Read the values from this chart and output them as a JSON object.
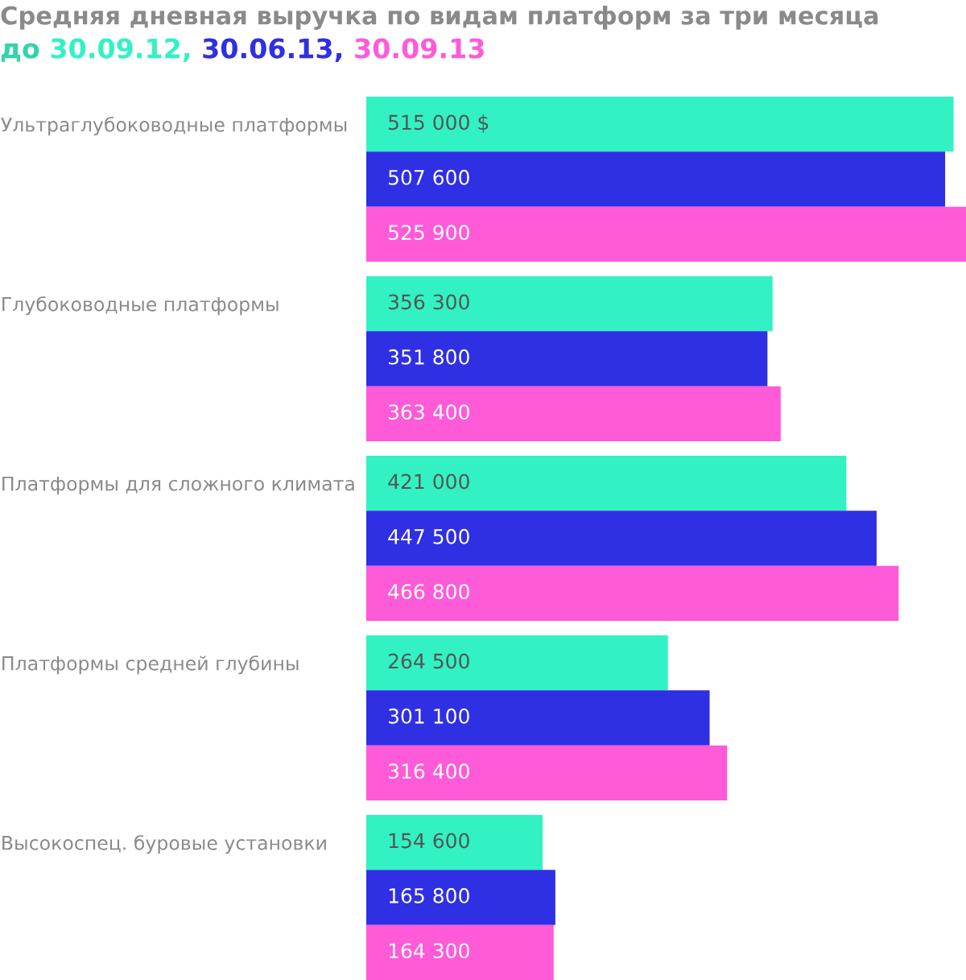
{
  "chart_data": {
    "type": "bar",
    "orientation": "horizontal",
    "title": "Средняя дневная выручка по видам платформ за три месяца",
    "subtitle": "до",
    "categories": [
      "Ультраглубоководные платформы",
      "Глубоководные платформы",
      "Платформы для сложного климата",
      "Платформы средней глубины",
      "Высокоспец. буровые установки"
    ],
    "series": [
      {
        "name": "30.09.12",
        "color": "#32f2c4",
        "values": [
          515000,
          356300,
          421000,
          264500,
          154600
        ],
        "value_labels": [
          "515 000 $",
          "356 300",
          "421 000",
          "264 500",
          "154 600"
        ]
      },
      {
        "name": "30.06.13",
        "color": "#2f2fe4",
        "values": [
          507600,
          351800,
          447500,
          301100,
          165800
        ],
        "value_labels": [
          "507 600",
          "351 800",
          "447 500",
          "301 100",
          "165 800"
        ]
      },
      {
        "name": "30.09.13",
        "color": "#ff5ad8",
        "values": [
          525900,
          363400,
          466800,
          316400,
          164300
        ],
        "value_labels": [
          "525 900",
          "363 400",
          "466 800",
          "316 400",
          "164 300"
        ]
      }
    ],
    "annotations": [
      ",",
      ","
    ],
    "xlim": [
      0,
      525900
    ],
    "tick_labels": "y",
    "grid": false,
    "legend": false
  }
}
